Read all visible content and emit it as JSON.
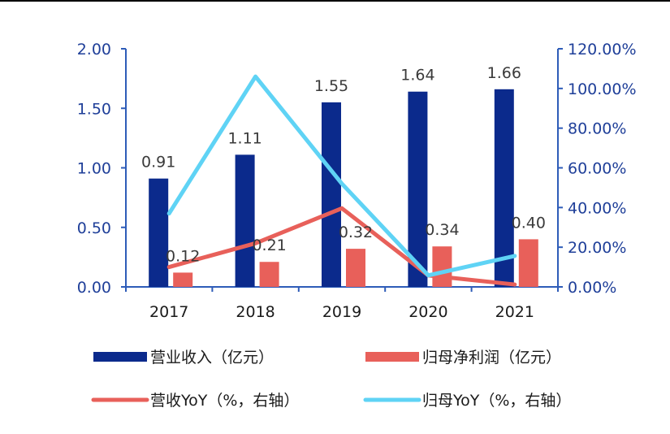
{
  "chart_data": {
    "type": "bar",
    "categories": [
      "2017",
      "2018",
      "2019",
      "2020",
      "2021"
    ],
    "series": [
      {
        "name": "营业收入（亿元）",
        "kind": "bar",
        "axis": "left",
        "color": "#0b2a8c",
        "values": [
          0.91,
          1.11,
          1.55,
          1.64,
          1.66
        ],
        "labels": [
          "0.91",
          "1.11",
          "1.55",
          "1.64",
          "1.66"
        ]
      },
      {
        "name": "归母净利润（亿元）",
        "kind": "bar",
        "axis": "left",
        "color": "#e8605a",
        "values": [
          0.12,
          0.21,
          0.32,
          0.34,
          0.4
        ],
        "labels": [
          "0.12",
          "0.21",
          "0.32",
          "0.34",
          "0.40"
        ]
      },
      {
        "name": "营收YoY（%，右轴）",
        "kind": "line",
        "axis": "right",
        "color": "#e8605a",
        "values": [
          10.0,
          22.0,
          39.6,
          5.8,
          1.2
        ]
      },
      {
        "name": "归母YoY（%，右轴）",
        "kind": "line",
        "axis": "right",
        "color": "#5fd3f5",
        "values": [
          37.0,
          106.0,
          52.0,
          5.8,
          15.6
        ]
      }
    ],
    "left_axis": {
      "ylim": [
        0,
        2.0
      ],
      "ticks": [
        "0.00",
        "0.50",
        "1.00",
        "1.50",
        "2.00"
      ]
    },
    "right_axis": {
      "ylim": [
        0,
        120
      ],
      "ticks": [
        "0.00%",
        "20.00%",
        "40.00%",
        "60.00%",
        "80.00%",
        "100.00%",
        "120.00%"
      ]
    },
    "legend_position": "bottom",
    "axis_color": "#2e5cb8"
  }
}
